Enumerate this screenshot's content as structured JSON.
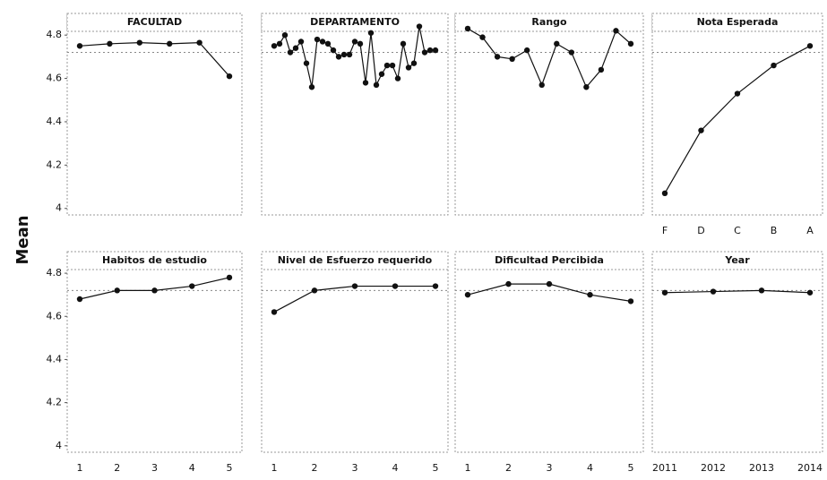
{
  "ylabel": "Mean",
  "reference_line": 4.72,
  "chart_data": [
    {
      "type": "line",
      "title": "FACULTAD",
      "categories": [
        null,
        null,
        null,
        null,
        null,
        null
      ],
      "values": [
        4.75,
        4.76,
        4.765,
        4.76,
        4.765,
        4.61
      ],
      "ylim": [
        3.97,
        4.9
      ],
      "yticks": [
        4.0,
        4.2,
        4.4,
        4.6,
        4.8
      ],
      "color": "#111111"
    },
    {
      "type": "line",
      "title": "DEPARTAMENTO",
      "categories": [
        null,
        null,
        null,
        null,
        null,
        null,
        null,
        null,
        null,
        null,
        null,
        null,
        null,
        null,
        null,
        null,
        null,
        null,
        null,
        null,
        null,
        null,
        null,
        null,
        null,
        null,
        null,
        null,
        null,
        null,
        null
      ],
      "values": [
        4.75,
        4.76,
        4.8,
        4.72,
        4.74,
        4.77,
        4.67,
        4.56,
        4.78,
        4.77,
        4.76,
        4.73,
        4.7,
        4.71,
        4.71,
        4.77,
        4.76,
        4.58,
        4.81,
        4.57,
        4.62,
        4.66,
        4.66,
        4.6,
        4.76,
        4.65,
        4.67,
        4.84,
        4.72,
        4.73,
        4.73
      ],
      "ylim": [
        3.97,
        4.9
      ],
      "color": "#111111"
    },
    {
      "type": "line",
      "title": "Rango",
      "categories": [
        null,
        null,
        null,
        null,
        null,
        null,
        null,
        null,
        null,
        null,
        null,
        null
      ],
      "values": [
        4.83,
        4.79,
        4.7,
        4.69,
        4.73,
        4.57,
        4.76,
        4.72,
        4.56,
        4.64,
        4.82,
        4.76
      ],
      "ylim": [
        3.97,
        4.9
      ],
      "color": "#111111"
    },
    {
      "type": "line",
      "title": "Nota Esperada",
      "categories": [
        "F",
        "D",
        "C",
        "B",
        "A"
      ],
      "values": [
        4.07,
        4.36,
        4.53,
        4.66,
        4.75
      ],
      "ylim": [
        3.97,
        4.9
      ],
      "color": "#111111"
    },
    {
      "type": "line",
      "title": "Habitos de estudio",
      "categories": [
        "1",
        "2",
        "3",
        "4",
        "5"
      ],
      "values": [
        4.68,
        4.72,
        4.72,
        4.74,
        4.78
      ],
      "ylim": [
        3.97,
        4.9
      ],
      "yticks": [
        4.0,
        4.2,
        4.4,
        4.6,
        4.8
      ],
      "color": "#111111"
    },
    {
      "type": "line",
      "title": "Nivel de Esfuerzo requerido",
      "categories": [
        "1",
        "2",
        "3",
        "4",
        "5"
      ],
      "values": [
        4.62,
        4.72,
        4.74,
        4.74,
        4.74
      ],
      "ylim": [
        3.97,
        4.9
      ],
      "color": "#111111"
    },
    {
      "type": "line",
      "title": "Dificultad Percibida",
      "categories": [
        "1",
        "2",
        "3",
        "4",
        "5"
      ],
      "values": [
        4.7,
        4.75,
        4.75,
        4.7,
        4.67
      ],
      "ylim": [
        3.97,
        4.9
      ],
      "color": "#111111"
    },
    {
      "type": "line",
      "title": "Year",
      "categories": [
        "2011",
        "2012",
        "2013",
        "2014"
      ],
      "values": [
        4.71,
        4.715,
        4.72,
        4.71
      ],
      "ylim": [
        3.97,
        4.9
      ],
      "color": "#111111"
    }
  ]
}
